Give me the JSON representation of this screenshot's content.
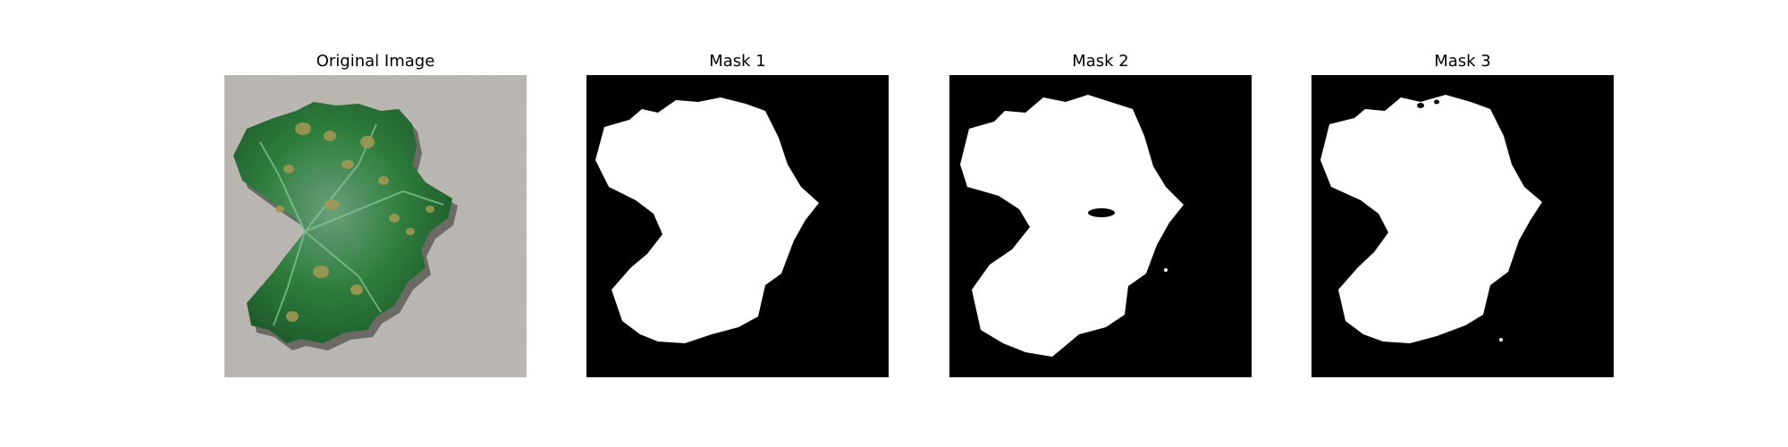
{
  "panels": [
    {
      "title": "Original Image"
    },
    {
      "title": "Mask 1"
    },
    {
      "title": "Mask 2"
    },
    {
      "title": "Mask 3"
    }
  ],
  "colors": {
    "background": "#ffffff",
    "mask_background": "#000000",
    "mask_foreground": "#ffffff",
    "paper": "#b9b6b1",
    "leaf_dark": "#1d5a2a",
    "leaf_mid": "#2f7d3d",
    "leaf_light": "#6aa07a",
    "lesion": "#a39a52"
  }
}
